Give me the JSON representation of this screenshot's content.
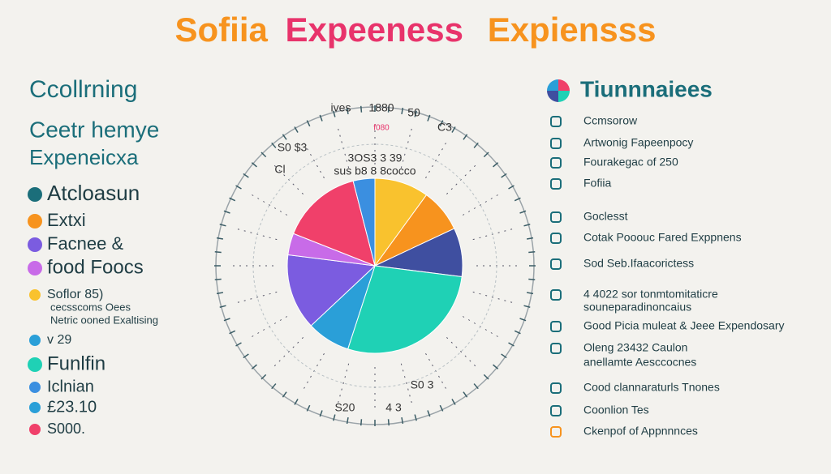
{
  "title_parts": [
    "Sofiia",
    "Expeeness",
    "Expiensss"
  ],
  "left": {
    "heading": "Ccollrning",
    "subheading": [
      "Ceetr hemye",
      "Expeneicxa"
    ],
    "items": [
      "Atcloasun",
      "Extxi",
      "Facnee &",
      "food Foocs",
      "Soflor 85)",
      "cecsscoms Oees",
      "Netric ooned Exaltising",
      "v 29",
      "Funlfin",
      "Iclnian",
      "£23.10",
      "S000."
    ]
  },
  "right": {
    "heading": "Tiunnnaiees",
    "items": [
      "Ccmsorow",
      "Artwonig Fapeenpocy",
      "Fourakegac of 250",
      "Fofiia",
      "Goclesst",
      "Cotak Pooouc Fared Exppnens",
      "Sod Seb.Ifaacorictess",
      "4 4022 sor tonmtomitaticre",
      "souneparadinoncaius",
      "Good Picia muleat & Jeee Expendosary",
      "Oleng 23432 Caulon",
      "anellamte Aesccocnes",
      "Cood clannaraturls Tnones",
      "Coonlion Tes",
      "Ckenpof of Appnnnces"
    ]
  },
  "ring_labels": [
    "ives",
    "1880",
    "50",
    "f080",
    "C3",
    "S0 $3",
    "3OS3 3 39",
    "sus b8 8 8cocco",
    "S20",
    "4 3",
    "S0 3",
    "Cl"
  ],
  "chart_data": {
    "type": "pie",
    "values": [
      10,
      8,
      9,
      28,
      8,
      14,
      4,
      15,
      4
    ],
    "colors": [
      "#f9c22e",
      "#f7931e",
      "#3f4fa0",
      "#1fd1b5",
      "#2a9fd8",
      "#7b5ce0",
      "#c86be8",
      "#f0406a",
      "#3b8fe0"
    ]
  }
}
